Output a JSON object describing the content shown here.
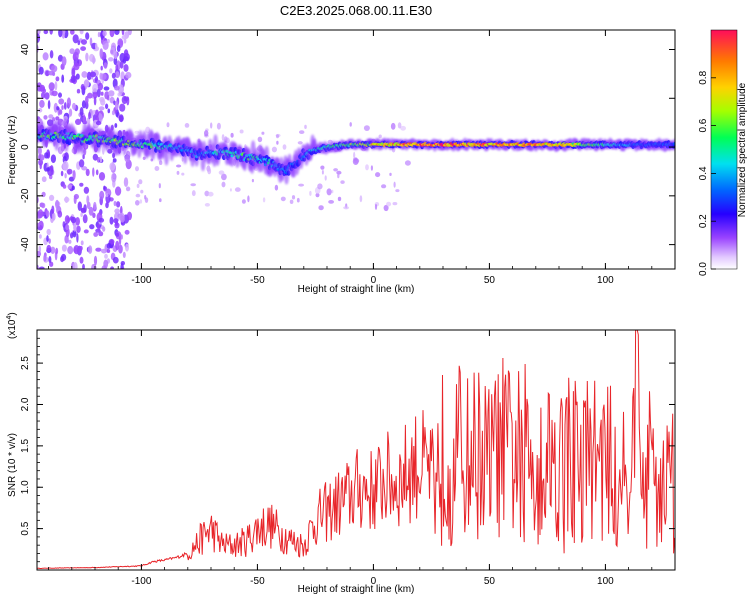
{
  "title": "C2E3.2025.068.00.11.E30",
  "chart_data": [
    {
      "type": "heatmap",
      "xlabel": "Height of straight line (km)",
      "ylabel": "Frequency (Hz)",
      "xlim": [
        -145,
        130
      ],
      "ylim": [
        -50,
        48
      ],
      "xticks": [
        -100,
        -50,
        0,
        50,
        100
      ],
      "yticks": [
        -40,
        -20,
        0,
        20,
        40
      ],
      "colorbar": {
        "label": "Normalized spectral amplitude",
        "range": [
          0,
          1
        ],
        "ticks": [
          0.0,
          0.2,
          0.4,
          0.6,
          0.8
        ]
      },
      "ridge": {
        "x": [
          -145,
          -130,
          -115,
          -100,
          -85,
          -75,
          -65,
          -55,
          -45,
          -38,
          -33,
          -28,
          -20,
          -10,
          0,
          20,
          40,
          60,
          80,
          100,
          115,
          130
        ],
        "frequency": [
          5,
          4,
          3,
          1,
          0,
          -3,
          -2,
          -4,
          -6,
          -10,
          -6,
          -2,
          0,
          1,
          1,
          1,
          1,
          1,
          1,
          1,
          1,
          1
        ],
        "amplitude": [
          0.55,
          0.55,
          0.6,
          0.6,
          0.4,
          0.35,
          0.5,
          0.55,
          0.45,
          0.35,
          0.3,
          0.4,
          0.5,
          0.6,
          0.75,
          0.9,
          0.9,
          0.85,
          0.8,
          0.5,
          0.3,
          0.3
        ]
      }
    },
    {
      "type": "line",
      "xlabel": "Height of straight line (km)",
      "ylabel": "SNR (10 * v/v)",
      "y_scale_label": "(x10",
      "y_scale_exponent": "4",
      "xlim": [
        -145,
        130
      ],
      "ylim": [
        0,
        2.9
      ],
      "xticks": [
        -100,
        -50,
        0,
        50,
        100
      ],
      "yticks": [
        0.5,
        1.0,
        1.5,
        2.0,
        2.5
      ],
      "series": [
        {
          "color": "#e8252a",
          "x": [
            -145,
            -120,
            -100,
            -95,
            -90,
            -85,
            -80,
            -75,
            -70,
            -65,
            -60,
            -55,
            -50,
            -45,
            -40,
            -35,
            -30,
            -25,
            -20,
            -15,
            -10,
            -5,
            0,
            5,
            10,
            15,
            20,
            25,
            30,
            35,
            40,
            45,
            50,
            55,
            60,
            65,
            70,
            75,
            80,
            85,
            90,
            95,
            100,
            105,
            110,
            113,
            115,
            120,
            125,
            130
          ],
          "values": [
            0.02,
            0.03,
            0.05,
            0.1,
            0.12,
            0.15,
            0.2,
            0.35,
            0.5,
            0.3,
            0.3,
            0.35,
            0.5,
            0.55,
            0.45,
            0.35,
            0.3,
            0.6,
            0.7,
            0.8,
            0.9,
            1.0,
            0.95,
            1.1,
            1.05,
            1.2,
            1.3,
            1.15,
            1.4,
            1.5,
            1.35,
            1.45,
            1.3,
            1.5,
            1.4,
            1.45,
            1.35,
            1.4,
            1.3,
            1.45,
            1.35,
            1.4,
            1.3,
            1.25,
            1.3,
            2.9,
            1.2,
            1.3,
            1.1,
            1.2
          ]
        }
      ]
    }
  ]
}
